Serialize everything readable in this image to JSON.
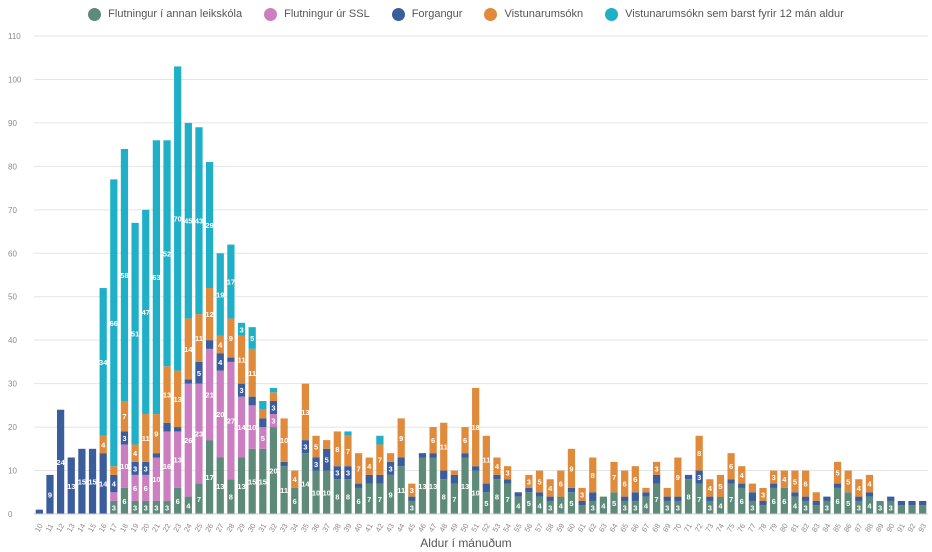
{
  "chart_data": {
    "type": "bar",
    "stacked": true,
    "xlabel": "Aldur í mánuðum",
    "ylabel": "",
    "ylim": [
      0,
      110
    ],
    "yticks": [
      0,
      10,
      20,
      30,
      40,
      50,
      60,
      70,
      80,
      90,
      100,
      110
    ],
    "grid": true,
    "legend_position": "top",
    "categories": [
      "10",
      "11",
      "12",
      "13",
      "14",
      "15",
      "16",
      "17",
      "18",
      "19",
      "20",
      "21",
      "22",
      "23",
      "24",
      "25",
      "26",
      "27",
      "28",
      "29",
      "30",
      "31",
      "32",
      "33",
      "34",
      "35",
      "36",
      "37",
      "38",
      "39",
      "40",
      "41",
      "42",
      "43",
      "44",
      "45",
      "46",
      "47",
      "48",
      "49",
      "50",
      "51",
      "52",
      "53",
      "54",
      "55",
      "56",
      "57",
      "58",
      "59",
      "60",
      "61",
      "62",
      "63",
      "64",
      "65",
      "66",
      "67",
      "68",
      "69",
      "70",
      "71",
      "72",
      "73",
      "74",
      "75",
      "76",
      "77",
      "78",
      "79",
      "80",
      "81",
      "82",
      "83",
      "84",
      "85",
      "86",
      "87",
      "88",
      "89",
      "90",
      "91",
      "92",
      "93"
    ],
    "series": [
      {
        "name": "Flutningur í annan leikskóla",
        "color": "#5e8a7a",
        "values": [
          0,
          0,
          0,
          0,
          0,
          0,
          0,
          3,
          6,
          3,
          3,
          3,
          3,
          6,
          4,
          7,
          17,
          13,
          8,
          13,
          15,
          15,
          20,
          11,
          6,
          14,
          10,
          10,
          8,
          8,
          6,
          7,
          7,
          9,
          11,
          3,
          13,
          13,
          8,
          7,
          13,
          10,
          5,
          8,
          7,
          4,
          5,
          4,
          3,
          4,
          5,
          2,
          3,
          4,
          5,
          3,
          3,
          4,
          7,
          3,
          3,
          8,
          7,
          3,
          4,
          7,
          6,
          3,
          2,
          6,
          6,
          4,
          3,
          2,
          3,
          6,
          5,
          3,
          4,
          3,
          3,
          2,
          2,
          2
        ]
      },
      {
        "name": "Flutningur úr SSL",
        "color": "#cc7fc0",
        "values": [
          0,
          0,
          0,
          0,
          0,
          0,
          0,
          2,
          10,
          6,
          6,
          10,
          16,
          13,
          26,
          23,
          21,
          20,
          27,
          14,
          10,
          5,
          3,
          0,
          0,
          0,
          0,
          0,
          0,
          0,
          0,
          0,
          0,
          0,
          0,
          0,
          0,
          0,
          0,
          0,
          0,
          0,
          0,
          0,
          0,
          0,
          0,
          0,
          0,
          0,
          0,
          0,
          0,
          0,
          0,
          0,
          0,
          0,
          0,
          0,
          0,
          0,
          0,
          0,
          0,
          0,
          0,
          0,
          0,
          0,
          0,
          0,
          0,
          0,
          0,
          0,
          0,
          0,
          0,
          0,
          0,
          0,
          0,
          0
        ]
      },
      {
        "name": "Forgangur",
        "color": "#3b5d9c",
        "values": [
          1,
          9,
          24,
          13,
          15,
          15,
          14,
          4,
          3,
          3,
          3,
          1,
          2,
          1,
          1,
          5,
          2,
          4,
          1,
          3,
          2,
          2,
          3,
          1,
          0,
          3,
          3,
          5,
          3,
          3,
          1,
          2,
          2,
          3,
          2,
          1,
          1,
          1,
          2,
          2,
          1,
          1,
          2,
          1,
          1,
          1,
          1,
          1,
          1,
          0,
          1,
          1,
          2,
          0,
          0,
          1,
          2,
          1,
          2,
          1,
          1,
          1,
          3,
          1,
          0,
          1,
          1,
          2,
          1,
          1,
          0,
          1,
          1,
          1,
          1,
          1,
          0,
          1,
          1,
          0,
          1,
          1,
          1,
          1
        ]
      },
      {
        "name": "Vistunarumsókn",
        "color": "#e08a3c",
        "values": [
          0,
          0,
          0,
          0,
          0,
          0,
          4,
          2,
          7,
          4,
          11,
          9,
          13,
          13,
          14,
          11,
          12,
          4,
          9,
          11,
          11,
          2,
          2,
          10,
          4,
          13,
          5,
          2,
          8,
          7,
          7,
          4,
          7,
          2,
          9,
          3,
          0,
          6,
          11,
          1,
          6,
          18,
          11,
          4,
          3,
          0,
          3,
          5,
          4,
          6,
          9,
          3,
          8,
          0,
          7,
          6,
          6,
          1,
          3,
          2,
          9,
          0,
          8,
          4,
          5,
          6,
          4,
          2,
          3,
          3,
          4,
          5,
          6,
          2,
          0,
          5,
          5,
          4,
          4,
          0,
          0,
          0,
          0,
          0
        ]
      },
      {
        "name": "Vistunarumsókn sem barst fyrir 12 mán aldur",
        "color": "#1fb0c8",
        "values": [
          0,
          0,
          0,
          0,
          0,
          0,
          34,
          66,
          58,
          51,
          47,
          63,
          52,
          70,
          45,
          43,
          29,
          19,
          17,
          3,
          5,
          2,
          1,
          0,
          0,
          0,
          0,
          0,
          0,
          1,
          0,
          0,
          2,
          0,
          0,
          0,
          0,
          0,
          0,
          0,
          0,
          0,
          0,
          0,
          0,
          0,
          0,
          0,
          0,
          0,
          0,
          0,
          0,
          0,
          0,
          0,
          0,
          0,
          0,
          0,
          0,
          0,
          0,
          0,
          0,
          0,
          0,
          0,
          0,
          0,
          0,
          0,
          0,
          0,
          0,
          0,
          0,
          0,
          0,
          0,
          0,
          0,
          0,
          0
        ]
      }
    ]
  }
}
